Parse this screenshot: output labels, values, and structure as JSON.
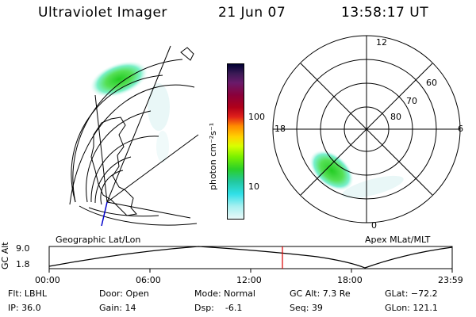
{
  "header": {
    "title": "Ultraviolet Imager",
    "date": "21 Jun 07",
    "time": "13:58:17 UT"
  },
  "colorbar": {
    "unit_label": "photon cm⁻²s⁻¹",
    "ticks": [
      "100",
      "10"
    ],
    "colors": [
      "#000033",
      "#3a1a55",
      "#6a1a6a",
      "#8a003a",
      "#b0001a",
      "#e0201a",
      "#ff8a00",
      "#ffd200",
      "#d8ff00",
      "#7af000",
      "#2ad02a",
      "#22c8a0",
      "#30e0e8",
      "#a8f0f0",
      "#e8f8f8"
    ]
  },
  "left_panel": {
    "label": "Geographic Lat/Lon"
  },
  "right_panel": {
    "label": "Apex MLat/MLT",
    "mlt_labels": {
      "top": "12",
      "left": "18",
      "right": "6",
      "bottom": "0"
    },
    "lat_labels": [
      "60",
      "70",
      "80"
    ]
  },
  "altitude_plot": {
    "ylabel": "GC Alt",
    "yticks": [
      "9.0",
      "1.8"
    ],
    "xticks": [
      "00:00",
      "06:00",
      "12:00",
      "18:00",
      "23:59"
    ],
    "current_time_hours": 13.97,
    "marker_color": "#dd0000"
  },
  "status": {
    "filter": "Flt: LBHL",
    "ip": "IP: 36.0",
    "door": "Door: Open",
    "gain": "Gain: 14",
    "mode": "Mode: Normal",
    "dsp": "Dsp:    -6.1",
    "gc_alt": "GC Alt: 7.3 Re",
    "seq": "Seq: 39",
    "glat": "GLat: −72.2",
    "glon": "GLon: 121.1"
  }
}
